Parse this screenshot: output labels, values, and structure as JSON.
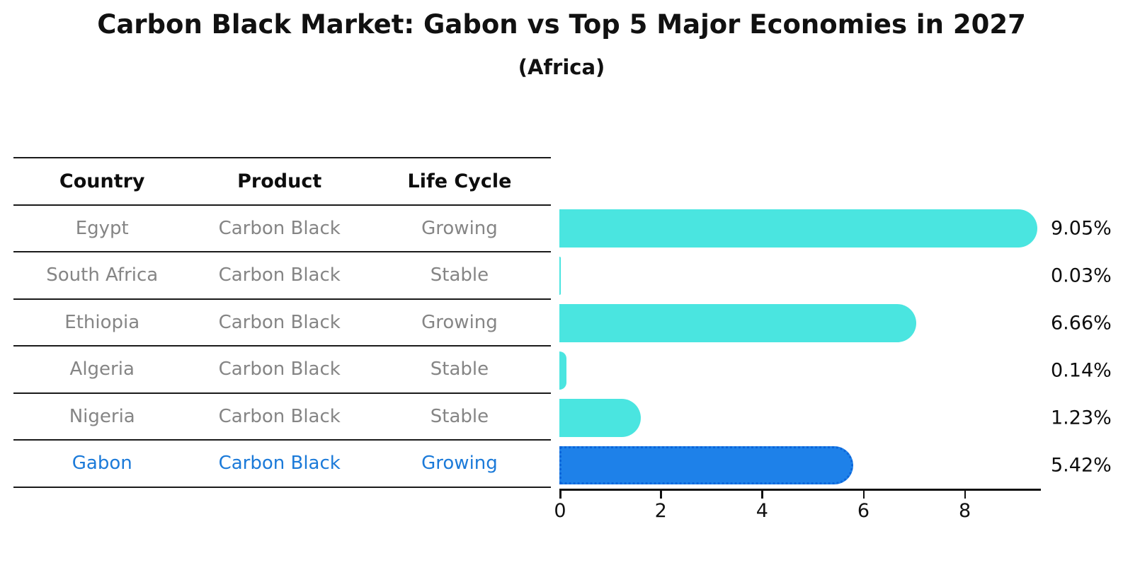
{
  "header": {
    "title": "Carbon Black Market: Gabon vs Top 5 Major Economies in 2027",
    "subtitle": "(Africa)"
  },
  "table": {
    "headers": [
      "Country",
      "Product",
      "Life Cycle"
    ],
    "rows": [
      {
        "country": "Egypt",
        "product": "Carbon Black",
        "life_cycle": "Growing",
        "highlight": false
      },
      {
        "country": "South Africa",
        "product": "Carbon Black",
        "life_cycle": "Stable",
        "highlight": false
      },
      {
        "country": "Ethiopia",
        "product": "Carbon Black",
        "life_cycle": "Growing",
        "highlight": false
      },
      {
        "country": "Algeria",
        "product": "Carbon Black",
        "life_cycle": "Stable",
        "highlight": false
      },
      {
        "country": "Nigeria",
        "product": "Carbon Black",
        "life_cycle": "Stable",
        "highlight": false
      },
      {
        "country": "Gabon",
        "product": "Carbon Black",
        "life_cycle": "Growing",
        "highlight": true
      }
    ]
  },
  "chart_data": {
    "type": "bar",
    "orientation": "horizontal",
    "title": "Carbon Black Market: Gabon vs Top 5 Major Economies in 2027",
    "subtitle": "(Africa)",
    "categories": [
      "Egypt",
      "South Africa",
      "Ethiopia",
      "Algeria",
      "Nigeria",
      "Gabon"
    ],
    "values": [
      9.05,
      0.03,
      6.66,
      0.14,
      1.23,
      5.42
    ],
    "value_labels": [
      "9.05%",
      "0.03%",
      "6.66%",
      "0.14%",
      "1.23%",
      "5.42%"
    ],
    "unit": "%",
    "xlim": [
      0,
      9.5
    ],
    "xticks": [
      "0",
      "2",
      "4",
      "6",
      "8"
    ],
    "xtick_values": [
      0,
      2,
      4,
      6,
      8
    ],
    "grid": false,
    "legend": false,
    "bar_color": "#4AE5E0",
    "highlight_color": "#1E81E9",
    "highlight_border_color": "#0C66DA",
    "highlight_text_color": "#1B7AD9",
    "highlight_index": 5
  }
}
